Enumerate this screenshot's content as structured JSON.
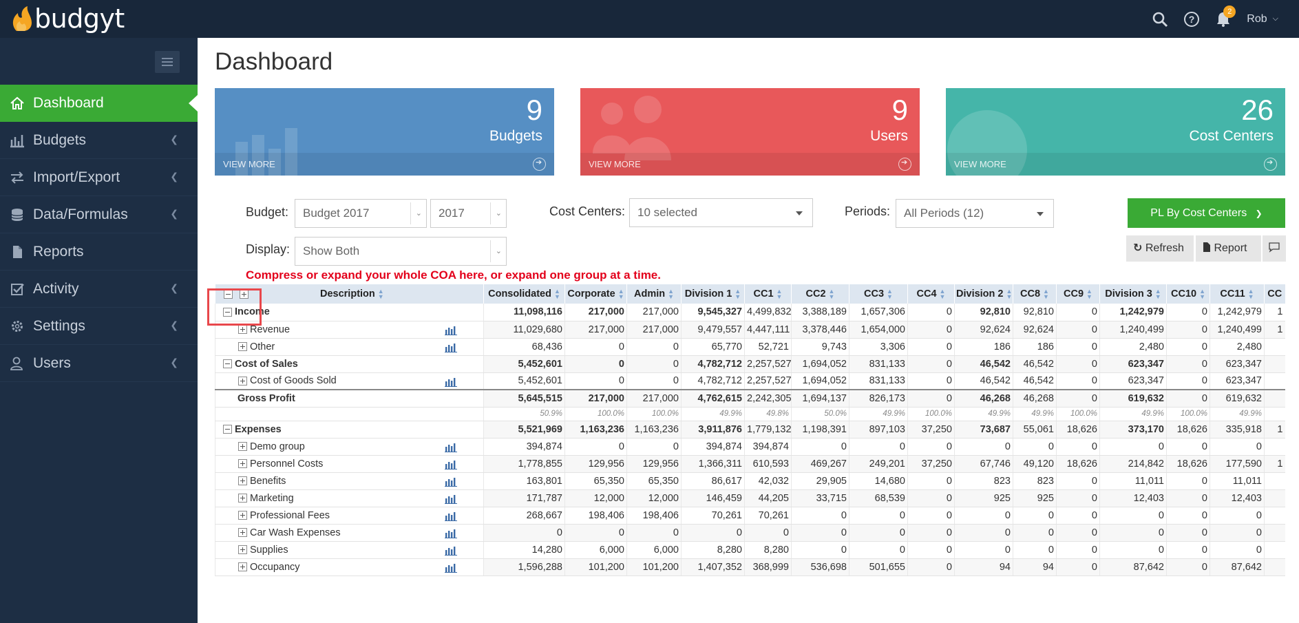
{
  "app": {
    "name": "budgyt"
  },
  "topbar": {
    "notification_count": "2",
    "user_name": "Rob"
  },
  "sidebar": {
    "items": [
      {
        "label": "Dashboard",
        "icon": "home-icon",
        "active": true
      },
      {
        "label": "Budgets",
        "icon": "bar-chart-icon"
      },
      {
        "label": "Import/Export",
        "icon": "transfer-icon"
      },
      {
        "label": "Data/Formulas",
        "icon": "database-icon"
      },
      {
        "label": "Reports",
        "icon": "file-icon"
      },
      {
        "label": "Activity",
        "icon": "check-square-icon"
      },
      {
        "label": "Settings",
        "icon": "gear-icon"
      },
      {
        "label": "Users",
        "icon": "user-icon"
      }
    ]
  },
  "page": {
    "title": "Dashboard"
  },
  "cards": [
    {
      "number": "9",
      "label": "Budgets",
      "footer": "VIEW MORE",
      "color": "#568fc4"
    },
    {
      "number": "9",
      "label": "Users",
      "footer": "VIEW MORE",
      "color": "#e8585a"
    },
    {
      "number": "26",
      "label": "Cost Centers",
      "footer": "VIEW MORE",
      "color": "#45b5a9"
    }
  ],
  "filters": {
    "budget_label": "Budget:",
    "budget_value": "Budget 2017",
    "year_value": "2017",
    "cost_centers_label": "Cost Centers:",
    "cost_centers_value": "10 selected",
    "periods_label": "Periods:",
    "periods_value": "All Periods (12)",
    "display_label": "Display:",
    "display_value": "Show Both"
  },
  "buttons": {
    "report_type": "PL By Cost Centers",
    "refresh": "Refresh",
    "report": "Report"
  },
  "hint": "Compress or expand your whole COA here, or expand one group at a time.",
  "table": {
    "desc_header": "Description",
    "columns": [
      "Consolidated",
      "Corporate",
      "Admin",
      "Division 1",
      "CC1",
      "CC2",
      "CC3",
      "CC4",
      "Division 2",
      "CC8",
      "CC9",
      "Division 3",
      "CC10",
      "CC11",
      "CC"
    ],
    "rows": [
      {
        "type": "group",
        "label": "Income",
        "values": [
          "11,098,116",
          "217,000",
          "217,000",
          "9,545,327",
          "4,499,832",
          "3,388,189",
          "1,657,306",
          "0",
          "92,810",
          "92,810",
          "0",
          "1,242,979",
          "0",
          "1,242,979",
          "1"
        ]
      },
      {
        "type": "item",
        "label": "Revenue",
        "values": [
          "11,029,680",
          "217,000",
          "217,000",
          "9,479,557",
          "4,447,111",
          "3,378,446",
          "1,654,000",
          "0",
          "92,624",
          "92,624",
          "0",
          "1,240,499",
          "0",
          "1,240,499",
          "1"
        ]
      },
      {
        "type": "item",
        "label": "Other",
        "values": [
          "68,436",
          "0",
          "0",
          "65,770",
          "52,721",
          "9,743",
          "3,306",
          "0",
          "186",
          "186",
          "0",
          "2,480",
          "0",
          "2,480",
          ""
        ]
      },
      {
        "type": "group",
        "label": "Cost of Sales",
        "values": [
          "5,452,601",
          "0",
          "0",
          "4,782,712",
          "2,257,527",
          "1,694,052",
          "831,133",
          "0",
          "46,542",
          "46,542",
          "0",
          "623,347",
          "0",
          "623,347",
          ""
        ]
      },
      {
        "type": "item",
        "label": "Cost of Goods Sold",
        "values": [
          "5,452,601",
          "0",
          "0",
          "4,782,712",
          "2,257,527",
          "1,694,052",
          "831,133",
          "0",
          "46,542",
          "46,542",
          "0",
          "623,347",
          "0",
          "623,347",
          ""
        ]
      },
      {
        "type": "total",
        "label": "Gross Profit",
        "values": [
          "5,645,515",
          "217,000",
          "217,000",
          "4,762,615",
          "2,242,305",
          "1,694,137",
          "826,173",
          "0",
          "46,268",
          "46,268",
          "0",
          "619,632",
          "0",
          "619,632",
          ""
        ]
      },
      {
        "type": "pct",
        "label": "",
        "values": [
          "50.9%",
          "100.0%",
          "100.0%",
          "49.9%",
          "49.8%",
          "50.0%",
          "49.9%",
          "100.0%",
          "49.9%",
          "49.9%",
          "100.0%",
          "49.9%",
          "100.0%",
          "49.9%",
          ""
        ]
      },
      {
        "type": "group",
        "label": "Expenses",
        "values": [
          "5,521,969",
          "1,163,236",
          "1,163,236",
          "3,911,876",
          "1,779,132",
          "1,198,391",
          "897,103",
          "37,250",
          "73,687",
          "55,061",
          "18,626",
          "373,170",
          "18,626",
          "335,918",
          "1"
        ]
      },
      {
        "type": "item",
        "label": "Demo group",
        "values": [
          "394,874",
          "0",
          "0",
          "394,874",
          "394,874",
          "0",
          "0",
          "0",
          "0",
          "0",
          "0",
          "0",
          "0",
          "0",
          ""
        ]
      },
      {
        "type": "item",
        "label": "Personnel Costs",
        "values": [
          "1,778,855",
          "129,956",
          "129,956",
          "1,366,311",
          "610,593",
          "469,267",
          "249,201",
          "37,250",
          "67,746",
          "49,120",
          "18,626",
          "214,842",
          "18,626",
          "177,590",
          "1"
        ]
      },
      {
        "type": "item",
        "label": "Benefits",
        "values": [
          "163,801",
          "65,350",
          "65,350",
          "86,617",
          "42,032",
          "29,905",
          "14,680",
          "0",
          "823",
          "823",
          "0",
          "11,011",
          "0",
          "11,011",
          ""
        ]
      },
      {
        "type": "item",
        "label": "Marketing",
        "values": [
          "171,787",
          "12,000",
          "12,000",
          "146,459",
          "44,205",
          "33,715",
          "68,539",
          "0",
          "925",
          "925",
          "0",
          "12,403",
          "0",
          "12,403",
          ""
        ]
      },
      {
        "type": "item",
        "label": "Professional Fees",
        "values": [
          "268,667",
          "198,406",
          "198,406",
          "70,261",
          "70,261",
          "0",
          "0",
          "0",
          "0",
          "0",
          "0",
          "0",
          "0",
          "0",
          ""
        ]
      },
      {
        "type": "item",
        "label": "Car Wash Expenses",
        "values": [
          "0",
          "0",
          "0",
          "0",
          "0",
          "0",
          "0",
          "0",
          "0",
          "0",
          "0",
          "0",
          "0",
          "0",
          ""
        ]
      },
      {
        "type": "item",
        "label": "Supplies",
        "values": [
          "14,280",
          "6,000",
          "6,000",
          "8,280",
          "8,280",
          "0",
          "0",
          "0",
          "0",
          "0",
          "0",
          "0",
          "0",
          "0",
          ""
        ]
      },
      {
        "type": "item",
        "label": "Occupancy",
        "values": [
          "1,596,288",
          "101,200",
          "101,200",
          "1,407,352",
          "368,999",
          "536,698",
          "501,655",
          "0",
          "94",
          "94",
          "0",
          "87,642",
          "0",
          "87,642",
          ""
        ]
      }
    ]
  }
}
